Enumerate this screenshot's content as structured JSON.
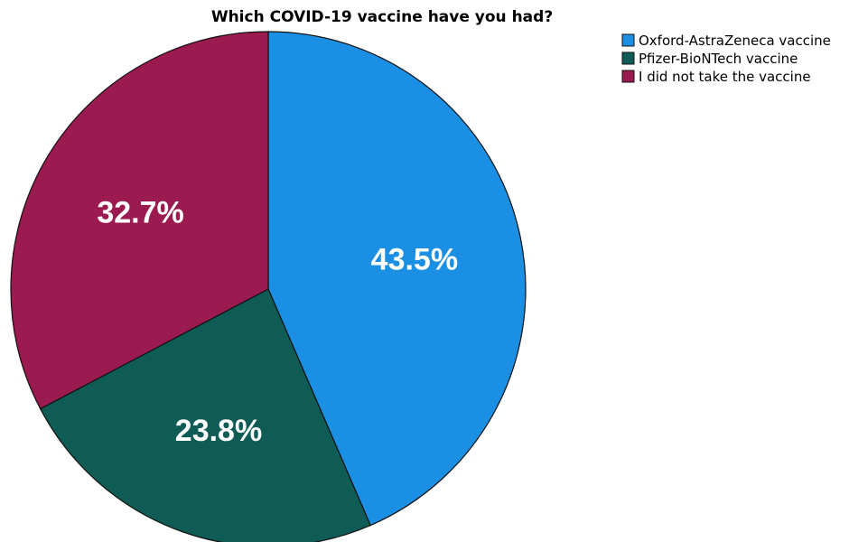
{
  "chart_data": {
    "type": "pie",
    "title": "Which COVID-19 vaccine have you had?",
    "categories": [
      "Oxford-AstraZeneca vaccine",
      "Pfizer-BioNTech vaccine",
      "I did not take the vaccine"
    ],
    "values": [
      43.5,
      23.8,
      32.7
    ],
    "value_labels": [
      "43.5%",
      "23.8%",
      "32.7%"
    ],
    "colors": [
      "#1a8fe3",
      "#0e5c55",
      "#9b1a4f"
    ],
    "start_angle_deg": 0,
    "direction": "clockwise",
    "legend_position": "top-right"
  }
}
